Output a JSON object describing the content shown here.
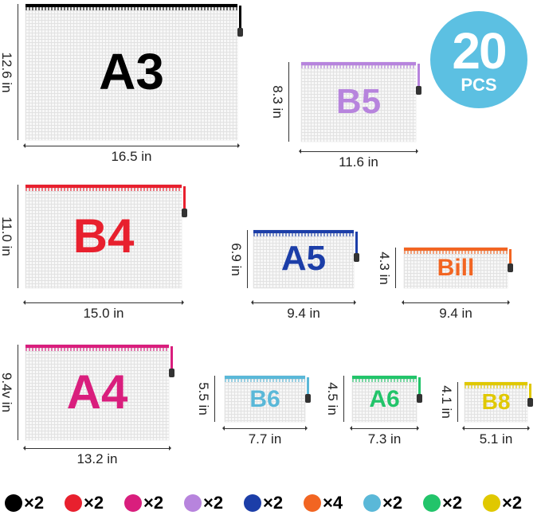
{
  "badge": {
    "count": "20",
    "unit": "PCS"
  },
  "pouches": [
    {
      "label": "A3",
      "color": "#000000",
      "height": "12.6 in",
      "width": "16.5 in"
    },
    {
      "label": "B5",
      "color": "#b784dd",
      "height": "8.3 in",
      "width": "11.6 in"
    },
    {
      "label": "B4",
      "color": "#e8202e",
      "height": "11.0 in",
      "width": "15.0 in"
    },
    {
      "label": "A5",
      "color": "#1c3ea8",
      "height": "6.9 in",
      "width": "9.4 in"
    },
    {
      "label": "Bill",
      "color": "#f26522",
      "height": "4.3 in",
      "width": "9.4 in"
    },
    {
      "label": "A4",
      "color": "#d91e7d",
      "height": "9.4v in",
      "width": "13.2 in"
    },
    {
      "label": "B6",
      "color": "#5ab8d8",
      "height": "5.5 in",
      "width": "7.7 in"
    },
    {
      "label": "A6",
      "color": "#22c46a",
      "height": "4.5 in",
      "width": "7.3 in"
    },
    {
      "label": "B8",
      "color": "#e0c800",
      "height": "4.1 in",
      "width": "5.1 in"
    }
  ],
  "legend": [
    {
      "color": "#000000",
      "qty": "×2"
    },
    {
      "color": "#e8202e",
      "qty": "×2"
    },
    {
      "color": "#d91e7d",
      "qty": "×2"
    },
    {
      "color": "#b784dd",
      "qty": "×2"
    },
    {
      "color": "#1c3ea8",
      "qty": "×2"
    },
    {
      "color": "#f26522",
      "qty": "×4"
    },
    {
      "color": "#5ab8d8",
      "qty": "×2"
    },
    {
      "color": "#22c46a",
      "qty": "×2"
    },
    {
      "color": "#e0c800",
      "qty": "×2"
    }
  ]
}
